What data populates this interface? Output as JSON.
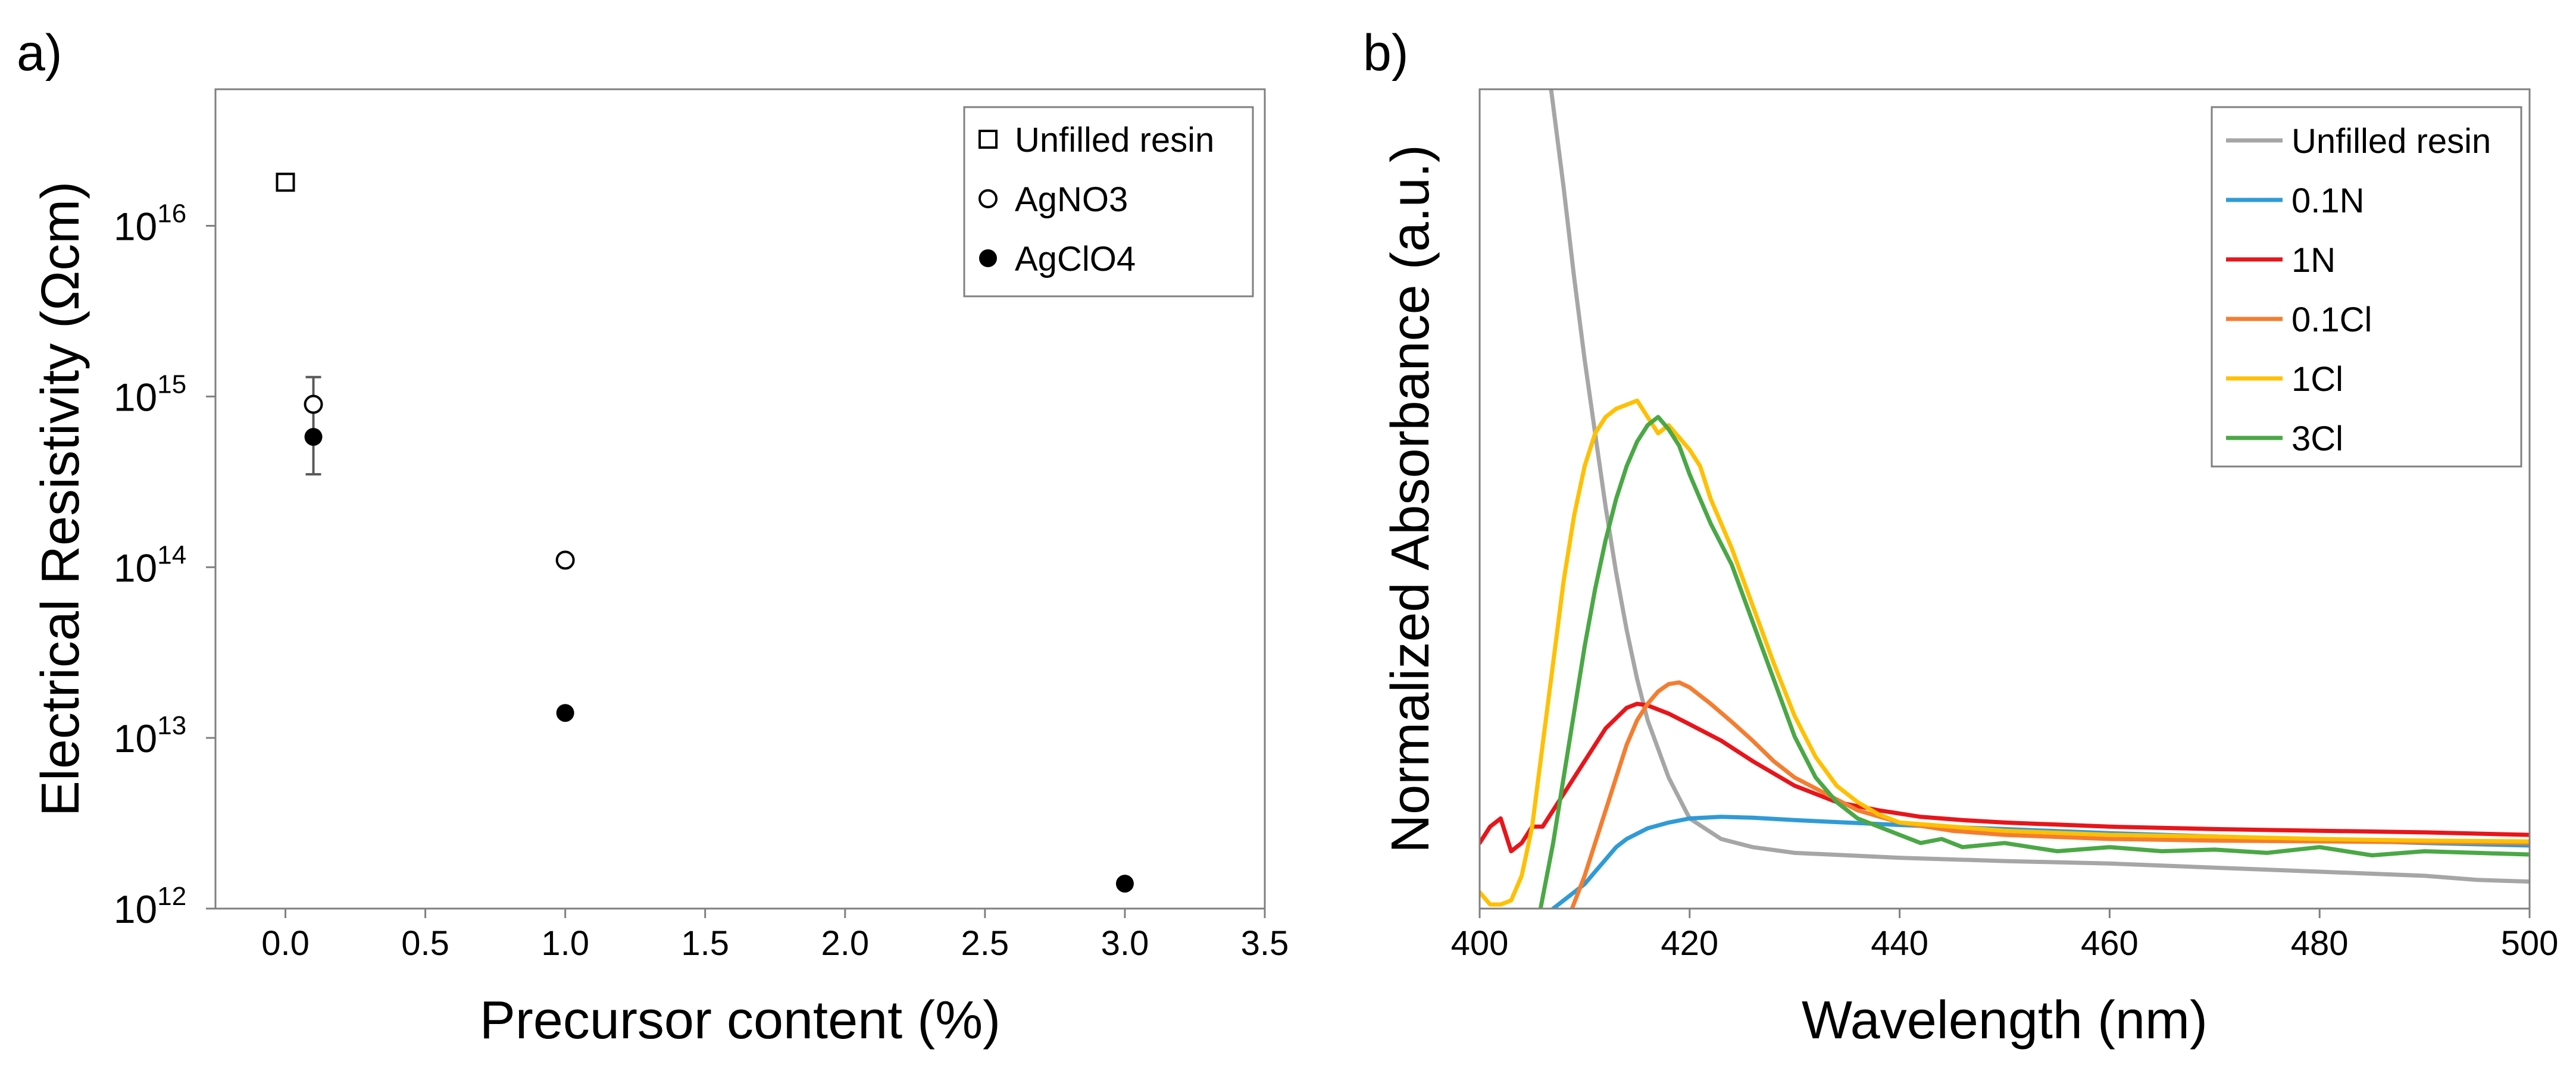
{
  "chart_data": [
    {
      "panel": "a)",
      "type": "scatter",
      "title": "",
      "xlabel": "Precursor content (%)",
      "ylabel": "Electrical Resistivity (Ωcm)",
      "xlim": [
        -0.25,
        3.5
      ],
      "ylim_log10": [
        12,
        16.8
      ],
      "yscale": "log",
      "x_ticks": [
        "0.0",
        "0.5",
        "1.0",
        "1.5",
        "2.0",
        "2.5",
        "3.0",
        "3.5"
      ],
      "x_tick_values": [
        0,
        0.5,
        1,
        1.5,
        2,
        2.5,
        3,
        3.5
      ],
      "y_tick_base": "10",
      "y_tick_exponents": [
        "12",
        "13",
        "14",
        "15",
        "16"
      ],
      "y_tick_values_log10": [
        12,
        13,
        14,
        15,
        16
      ],
      "legend_position": "top-right",
      "grid": false,
      "series": [
        {
          "name": "Unfilled resin",
          "marker": "open-square",
          "points": [
            {
              "x": 0.0,
              "y": 1.8e+16
            }
          ]
        },
        {
          "name": "AgNO3",
          "marker": "open-circle",
          "points": [
            {
              "x": 0.1,
              "y": 900000000000000.0,
              "err_low": 350000000000000.0,
              "err_high": 1300000000000000.0
            },
            {
              "x": 1.0,
              "y": 110000000000000.0
            }
          ]
        },
        {
          "name": "AgClO4",
          "marker": "filled-circle",
          "points": [
            {
              "x": 0.1,
              "y": 580000000000000.0
            },
            {
              "x": 1.0,
              "y": 14000000000000.0
            },
            {
              "x": 3.0,
              "y": 1400000000000.0
            }
          ]
        }
      ]
    },
    {
      "panel": "b)",
      "type": "line",
      "title": "",
      "xlabel": "Wavelength (nm)",
      "ylabel": "Normalized Absorbance (a.u.)",
      "xlim": [
        400,
        500
      ],
      "ylim": [
        0,
        1
      ],
      "x_ticks": [
        "400",
        "420",
        "440",
        "460",
        "480",
        "500"
      ],
      "x_tick_values": [
        400,
        420,
        440,
        460,
        480,
        500
      ],
      "legend_position": "top-right",
      "grid": false,
      "series": [
        {
          "name": "Unfilled resin",
          "color": "#a6a6a6",
          "x": [
            406.8,
            408,
            409,
            410,
            411,
            412,
            413,
            414,
            415,
            416,
            418,
            420,
            423,
            426,
            430,
            440,
            450,
            460,
            470,
            480,
            490,
            495,
            500
          ],
          "y": [
            1.0,
            0.88,
            0.77,
            0.67,
            0.58,
            0.49,
            0.41,
            0.34,
            0.28,
            0.23,
            0.16,
            0.11,
            0.085,
            0.075,
            0.068,
            0.062,
            0.058,
            0.055,
            0.05,
            0.045,
            0.04,
            0.035,
            0.033
          ]
        },
        {
          "name": "0.1N",
          "color": "#2f9bd6",
          "x": [
            407,
            408,
            409,
            410,
            411,
            412,
            413,
            414,
            416,
            418,
            420,
            423,
            426,
            430,
            440,
            450,
            460,
            470,
            480,
            490,
            500
          ],
          "y": [
            0.0,
            0.01,
            0.02,
            0.03,
            0.045,
            0.06,
            0.075,
            0.085,
            0.098,
            0.105,
            0.11,
            0.112,
            0.111,
            0.108,
            0.102,
            0.097,
            0.092,
            0.088,
            0.084,
            0.08,
            0.077
          ]
        },
        {
          "name": "1N",
          "color": "#e8151a",
          "x": [
            400,
            401,
            402,
            403,
            404,
            405,
            406,
            407,
            408,
            410,
            412,
            414,
            415,
            416,
            418,
            420,
            423,
            426,
            430,
            434,
            438,
            442,
            446,
            450,
            460,
            470,
            480,
            490,
            500
          ],
          "y": [
            0.08,
            0.1,
            0.11,
            0.07,
            0.08,
            0.1,
            0.1,
            0.12,
            0.14,
            0.18,
            0.22,
            0.245,
            0.25,
            0.248,
            0.238,
            0.225,
            0.205,
            0.18,
            0.15,
            0.13,
            0.12,
            0.112,
            0.108,
            0.105,
            0.1,
            0.097,
            0.095,
            0.093,
            0.09
          ]
        },
        {
          "name": "0.1Cl",
          "color": "#f47d30",
          "x": [
            408.8,
            410,
            411,
            412,
            413,
            414,
            415,
            416,
            417,
            418,
            419,
            420,
            422,
            424,
            426,
            428,
            430,
            433,
            436,
            440,
            445,
            450,
            460,
            470,
            480,
            490,
            500
          ],
          "y": [
            0.0,
            0.04,
            0.08,
            0.12,
            0.16,
            0.2,
            0.23,
            0.25,
            0.265,
            0.274,
            0.276,
            0.27,
            0.25,
            0.228,
            0.205,
            0.18,
            0.16,
            0.14,
            0.12,
            0.105,
            0.095,
            0.09,
            0.085,
            0.083,
            0.082,
            0.081,
            0.08
          ]
        },
        {
          "name": "1Cl",
          "color": "#ffc000",
          "x": [
            400,
            401,
            402,
            403,
            404,
            405,
            406,
            407,
            408,
            409,
            410,
            411,
            412,
            413,
            414,
            415,
            416,
            417,
            418,
            419,
            420,
            421,
            422,
            424,
            426,
            428,
            430,
            432,
            434,
            436,
            438,
            440,
            445,
            450,
            460,
            470,
            480,
            490,
            500
          ],
          "y": [
            0.02,
            0.005,
            0.005,
            0.01,
            0.04,
            0.1,
            0.2,
            0.3,
            0.4,
            0.48,
            0.54,
            0.58,
            0.6,
            0.61,
            0.615,
            0.62,
            0.6,
            0.58,
            0.59,
            0.575,
            0.56,
            0.54,
            0.5,
            0.44,
            0.37,
            0.3,
            0.235,
            0.185,
            0.15,
            0.13,
            0.115,
            0.105,
            0.1,
            0.095,
            0.09,
            0.088,
            0.085,
            0.083,
            0.082
          ]
        },
        {
          "name": "3Cl",
          "color": "#4aa845",
          "x": [
            405.8,
            407,
            408,
            409,
            410,
            411,
            412,
            413,
            414,
            415,
            416,
            417,
            418,
            419,
            420,
            421,
            422,
            424,
            426,
            428,
            430,
            432,
            434,
            436,
            438,
            440,
            442,
            444,
            446,
            450,
            455,
            460,
            465,
            470,
            475,
            480,
            485,
            490,
            495,
            500
          ],
          "y": [
            0.0,
            0.08,
            0.16,
            0.24,
            0.32,
            0.39,
            0.45,
            0.5,
            0.54,
            0.57,
            0.59,
            0.6,
            0.585,
            0.565,
            0.53,
            0.5,
            0.47,
            0.42,
            0.35,
            0.28,
            0.21,
            0.16,
            0.13,
            0.11,
            0.1,
            0.09,
            0.08,
            0.085,
            0.075,
            0.08,
            0.07,
            0.075,
            0.07,
            0.072,
            0.068,
            0.075,
            0.065,
            0.07,
            0.068,
            0.066
          ]
        }
      ]
    }
  ]
}
